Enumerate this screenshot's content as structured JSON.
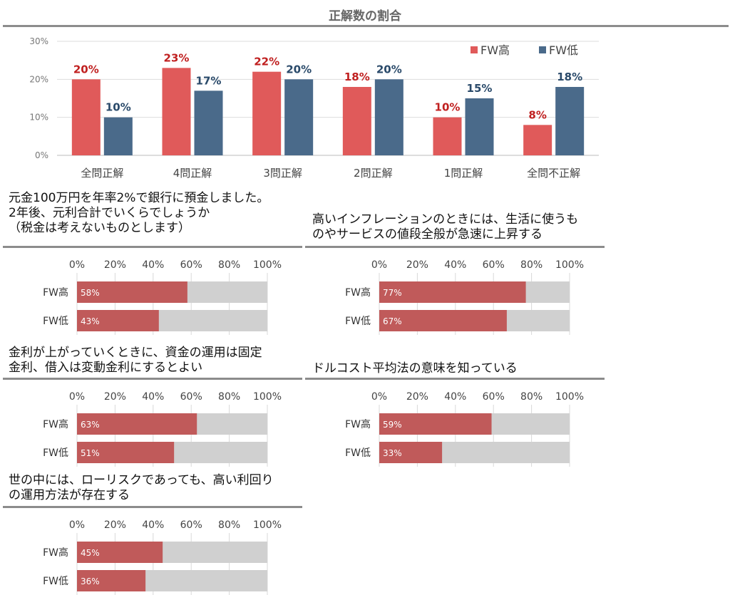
{
  "title": "正解数の割合",
  "legend": [
    "FW高",
    "FW低"
  ],
  "colors": {
    "high": "#e05a5a",
    "low": "#4a6a8a",
    "high_label": "#c02020",
    "low_label": "#2a4a6a",
    "bar": "#c05a5a",
    "track": "#d0d0d0"
  },
  "chart_data": [
    {
      "type": "bar",
      "title": "正解数の割合",
      "categories": [
        "全問正解",
        "4問正解",
        "3問正解",
        "2問正解",
        "1問正解",
        "全問不正解"
      ],
      "series": [
        {
          "name": "FW高",
          "values": [
            20,
            23,
            22,
            18,
            10,
            8
          ]
        },
        {
          "name": "FW低",
          "values": [
            10,
            17,
            20,
            20,
            15,
            18
          ]
        }
      ],
      "yticks": [
        "0%",
        "10%",
        "20%",
        "30%"
      ],
      "ylim": [
        0,
        30
      ],
      "legend_position": "top-right",
      "grid": true
    },
    {
      "type": "bar",
      "orientation": "horizontal",
      "title": "元金100万円を年率2%で銀行に預金しました。\n2年後、元利合計でいくらでしょうか\n（税金は考えないものとします）",
      "categories": [
        "FW高",
        "FW低"
      ],
      "values": [
        58,
        43
      ],
      "labels": [
        "58%",
        "43%"
      ],
      "xticks": [
        "0%",
        "20%",
        "40%",
        "60%",
        "80%",
        "100%"
      ],
      "xlim": [
        0,
        100
      ]
    },
    {
      "type": "bar",
      "orientation": "horizontal",
      "title": "高いインフレーションのときには、生活に使うも\nのやサービスの値段全般が急速に上昇する",
      "categories": [
        "FW高",
        "FW低"
      ],
      "values": [
        77,
        67
      ],
      "labels": [
        "77%",
        "67%"
      ],
      "xticks": [
        "0%",
        "20%",
        "40%",
        "60%",
        "80%",
        "100%"
      ],
      "xlim": [
        0,
        100
      ]
    },
    {
      "type": "bar",
      "orientation": "horizontal",
      "title": "金利が上がっていくときに、資金の運用は固定\n金利、借入は変動金利にするとよい",
      "categories": [
        "FW高",
        "FW低"
      ],
      "values": [
        63,
        51
      ],
      "labels": [
        "63%",
        "51%"
      ],
      "xticks": [
        "0%",
        "20%",
        "40%",
        "60%",
        "80%",
        "100%"
      ],
      "xlim": [
        0,
        100
      ]
    },
    {
      "type": "bar",
      "orientation": "horizontal",
      "title": "ドルコスト平均法の意味を知っている",
      "categories": [
        "FW高",
        "FW低"
      ],
      "values": [
        59,
        33
      ],
      "labels": [
        "59%",
        "33%"
      ],
      "xticks": [
        "0%",
        "20%",
        "40%",
        "60%",
        "80%",
        "100%"
      ],
      "xlim": [
        0,
        100
      ]
    },
    {
      "type": "bar",
      "orientation": "horizontal",
      "title": "世の中には、ローリスクであっても、高い利回り\nの運用方法が存在する",
      "categories": [
        "FW高",
        "FW低"
      ],
      "values": [
        45,
        36
      ],
      "labels": [
        "45%",
        "36%"
      ],
      "xticks": [
        "0%",
        "20%",
        "40%",
        "60%",
        "80%",
        "100%"
      ],
      "xlim": [
        0,
        100
      ]
    }
  ]
}
